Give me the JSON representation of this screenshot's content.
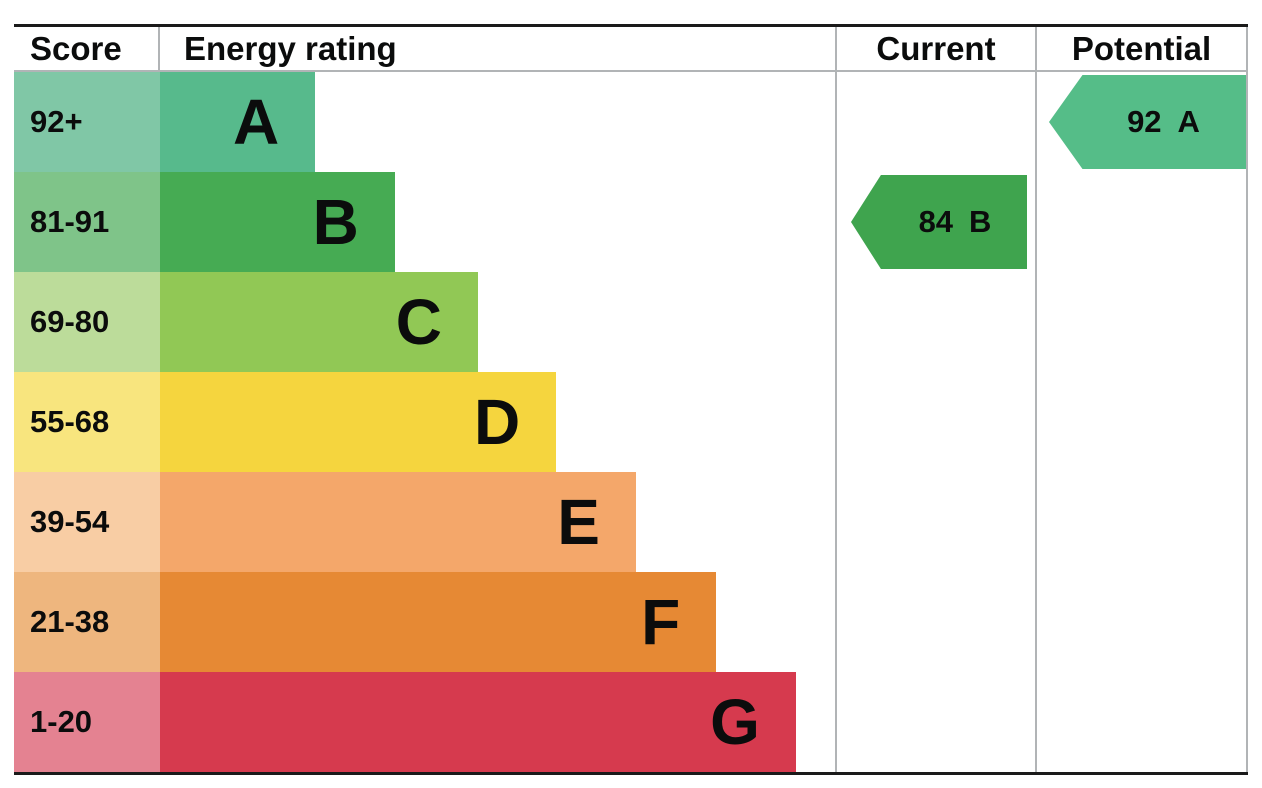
{
  "header": {
    "score": "Score",
    "energy_rating": "Energy rating",
    "current": "Current",
    "potential": "Potential"
  },
  "bands": [
    {
      "score_label": "92+",
      "letter": "A",
      "band_color": "#57ba8c",
      "score_tint": "#80c7a6",
      "width_pct": 23.0
    },
    {
      "score_label": "81-91",
      "letter": "B",
      "band_color": "#46ab53",
      "score_tint": "#7fc489",
      "width_pct": 34.8
    },
    {
      "score_label": "69-80",
      "letter": "C",
      "band_color": "#91c855",
      "score_tint": "#bcdc9a",
      "width_pct": 47.1
    },
    {
      "score_label": "55-68",
      "letter": "D",
      "band_color": "#f5d53e",
      "score_tint": "#f8e57e",
      "width_pct": 58.7
    },
    {
      "score_label": "39-54",
      "letter": "E",
      "band_color": "#f4a76a",
      "score_tint": "#f8cda4",
      "width_pct": 70.5
    },
    {
      "score_label": "21-38",
      "letter": "F",
      "band_color": "#e68934",
      "score_tint": "#eeb67e",
      "width_pct": 82.4
    },
    {
      "score_label": "1-20",
      "letter": "G",
      "band_color": "#d63a4e",
      "score_tint": "#e48291",
      "width_pct": 94.2
    }
  ],
  "current": {
    "value": "84",
    "letter": "B",
    "row": 1,
    "color": "#3fa44e"
  },
  "potential": {
    "value": "92",
    "letter": "A",
    "row": 0,
    "color": "#55bd88"
  },
  "chart_data": {
    "type": "bar",
    "title": "EPC Energy rating",
    "categories": [
      "A",
      "B",
      "C",
      "D",
      "E",
      "F",
      "G"
    ],
    "score_ranges": [
      "92+",
      "81-91",
      "69-80",
      "55-68",
      "39-54",
      "21-38",
      "1-20"
    ],
    "bar_lengths_pct": [
      23.0,
      34.8,
      47.1,
      58.7,
      70.5,
      82.4,
      94.2
    ],
    "columns": [
      "Score",
      "Energy rating",
      "Current",
      "Potential"
    ],
    "current": {
      "score": 84,
      "rating": "B"
    },
    "potential": {
      "score": 92,
      "rating": "A"
    },
    "legend_position": "none",
    "grid": false
  }
}
